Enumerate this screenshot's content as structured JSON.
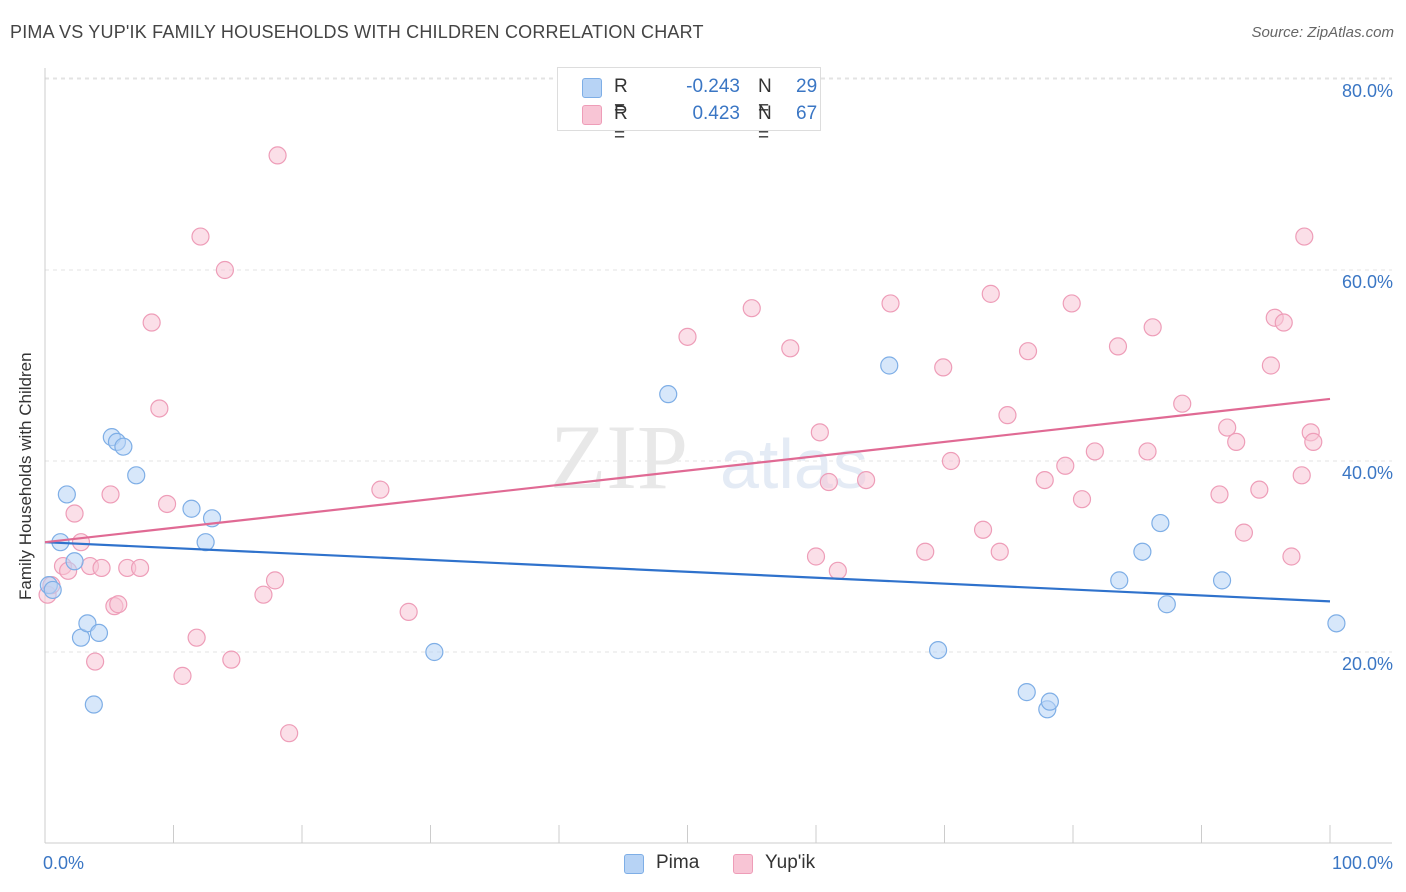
{
  "header": {
    "title": "PIMA VS YUP'IK FAMILY HOUSEHOLDS WITH CHILDREN CORRELATION CHART",
    "source": "Source: ZipAtlas.com"
  },
  "watermark": {
    "zip": "ZIP",
    "atlas": "atlas"
  },
  "legend": {
    "series": [
      {
        "name": "Pima",
        "r_label": "R =",
        "r_value": "-0.243",
        "n_label": "N =",
        "n_value": "29"
      },
      {
        "name": "Yup'ik",
        "r_label": "R =",
        "r_value": "0.423",
        "n_label": "N =",
        "n_value": "67"
      }
    ]
  },
  "colors": {
    "pima_fill": "#b7d3f5",
    "pima_stroke": "#7eaee6",
    "pima_line": "#2f72cc",
    "yupik_fill": "#f8c5d5",
    "yupik_stroke": "#ee9db8",
    "yupik_line": "#e06a94",
    "tick_label": "#3a76c4",
    "grid": "#e3e3e3"
  },
  "chart_data": {
    "type": "scatter",
    "title": "PIMA VS YUP'IK FAMILY HOUSEHOLDS WITH CHILDREN CORRELATION CHART",
    "xlabel": "",
    "ylabel": "Family Households with Children",
    "xlim": [
      0,
      100
    ],
    "ylim": [
      0,
      84
    ],
    "x_tick_labels": [
      "0.0%",
      "100.0%"
    ],
    "y_ticks": [
      20,
      40,
      60,
      80
    ],
    "y_tick_labels": [
      "20.0%",
      "40.0%",
      "60.0%",
      "80.0%"
    ],
    "grid": true,
    "legend_position": "top-center",
    "series": [
      {
        "name": "Pima",
        "points": [
          [
            0.3,
            27.0
          ],
          [
            0.6,
            26.5
          ],
          [
            1.2,
            31.5
          ],
          [
            1.7,
            36.5
          ],
          [
            2.3,
            29.5
          ],
          [
            2.8,
            21.5
          ],
          [
            3.3,
            23.0
          ],
          [
            3.8,
            14.5
          ],
          [
            4.2,
            22.0
          ],
          [
            5.2,
            42.5
          ],
          [
            5.6,
            42.0
          ],
          [
            6.1,
            41.5
          ],
          [
            7.1,
            38.5
          ],
          [
            11.4,
            35.0
          ],
          [
            12.5,
            31.5
          ],
          [
            13.0,
            34.0
          ],
          [
            30.3,
            20.0
          ],
          [
            48.5,
            47.0
          ],
          [
            65.7,
            50.0
          ],
          [
            69.5,
            20.2
          ],
          [
            76.4,
            15.8
          ],
          [
            78.0,
            14.0
          ],
          [
            78.2,
            14.8
          ],
          [
            83.6,
            27.5
          ],
          [
            85.4,
            30.5
          ],
          [
            86.8,
            33.5
          ],
          [
            87.3,
            25.0
          ],
          [
            91.6,
            27.5
          ],
          [
            100.5,
            23.0
          ]
        ],
        "trend": [
          [
            0,
            31.5
          ],
          [
            100,
            25.3
          ]
        ]
      },
      {
        "name": "Yup'ik",
        "points": [
          [
            0.2,
            26.0
          ],
          [
            0.5,
            27.0
          ],
          [
            1.4,
            29.0
          ],
          [
            1.8,
            28.5
          ],
          [
            2.3,
            34.5
          ],
          [
            2.8,
            31.5
          ],
          [
            3.5,
            29.0
          ],
          [
            3.9,
            19.0
          ],
          [
            4.4,
            28.8
          ],
          [
            5.1,
            36.5
          ],
          [
            5.4,
            24.8
          ],
          [
            5.7,
            25.0
          ],
          [
            6.4,
            28.8
          ],
          [
            7.4,
            28.8
          ],
          [
            8.3,
            54.5
          ],
          [
            8.9,
            45.5
          ],
          [
            9.5,
            35.5
          ],
          [
            10.7,
            17.5
          ],
          [
            11.8,
            21.5
          ],
          [
            12.1,
            63.5
          ],
          [
            14.0,
            60.0
          ],
          [
            14.5,
            19.2
          ],
          [
            17.0,
            26.0
          ],
          [
            17.9,
            27.5
          ],
          [
            18.1,
            72.0
          ],
          [
            19.0,
            11.5
          ],
          [
            26.1,
            37.0
          ],
          [
            28.3,
            24.2
          ],
          [
            50.0,
            53.0
          ],
          [
            55.0,
            56.0
          ],
          [
            58.0,
            51.8
          ],
          [
            60.0,
            30.0
          ],
          [
            60.3,
            43.0
          ],
          [
            61.0,
            37.8
          ],
          [
            61.7,
            28.5
          ],
          [
            63.9,
            38.0
          ],
          [
            65.8,
            56.5
          ],
          [
            68.5,
            30.5
          ],
          [
            69.9,
            49.8
          ],
          [
            70.5,
            40.0
          ],
          [
            73.0,
            32.8
          ],
          [
            73.6,
            57.5
          ],
          [
            74.3,
            30.5
          ],
          [
            74.9,
            44.8
          ],
          [
            76.5,
            51.5
          ],
          [
            77.8,
            38.0
          ],
          [
            79.4,
            39.5
          ],
          [
            79.9,
            56.5
          ],
          [
            80.7,
            36.0
          ],
          [
            81.7,
            41.0
          ],
          [
            83.5,
            52.0
          ],
          [
            85.8,
            41.0
          ],
          [
            86.2,
            54.0
          ],
          [
            88.5,
            46.0
          ],
          [
            91.4,
            36.5
          ],
          [
            92.0,
            43.5
          ],
          [
            92.7,
            42.0
          ],
          [
            93.3,
            32.5
          ],
          [
            94.5,
            37.0
          ],
          [
            95.4,
            50.0
          ],
          [
            95.7,
            55.0
          ],
          [
            96.4,
            54.5
          ],
          [
            97.0,
            30.0
          ],
          [
            97.8,
            38.5
          ],
          [
            98.0,
            63.5
          ],
          [
            98.5,
            43.0
          ],
          [
            98.7,
            42.0
          ]
        ],
        "trend": [
          [
            0,
            31.5
          ],
          [
            100,
            46.5
          ]
        ]
      }
    ]
  }
}
